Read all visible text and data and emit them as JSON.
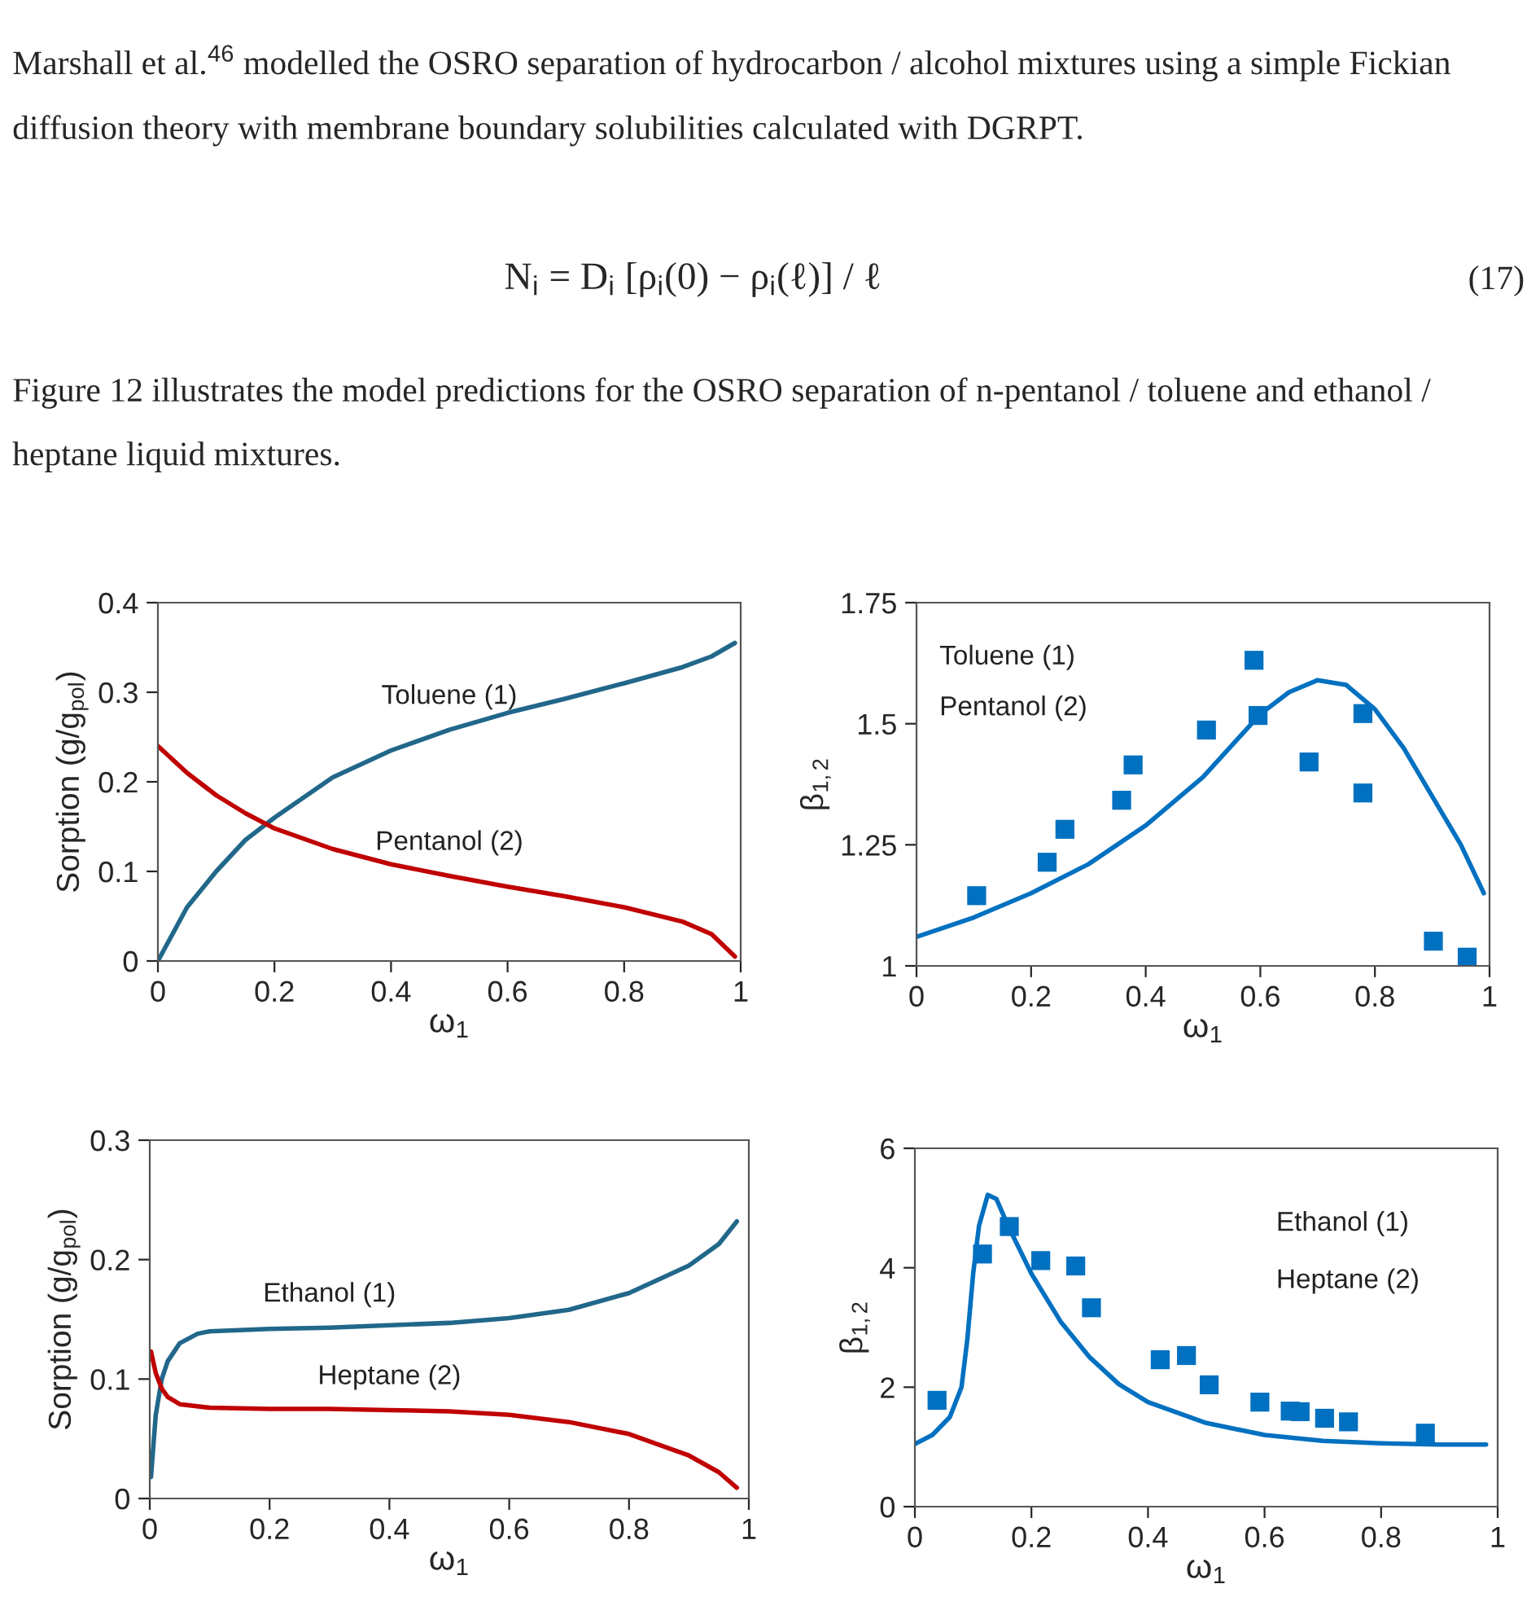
{
  "chart_data": [
    {
      "type": "line",
      "xlabel": "ω$_{1}$",
      "ylabel": "Sorption (g/g$_{pol}$)",
      "xlim": [
        0,
        1
      ],
      "ylim": [
        0,
        0.4
      ],
      "xticks": [
        0,
        0.2,
        0.4,
        0.6,
        0.8,
        1
      ],
      "yticks": [
        0,
        0.1,
        0.2,
        0.3,
        0.4
      ],
      "grid": false,
      "legend": false,
      "marker": "none",
      "line_style": "solid",
      "annotations": [
        "Marshall et al.$^{46}$ modelled the OSRO separation of hydrocarbon / alcohol mixtures using a simple Fickian diffusion theory with membrane boundary solubilities calculated with DGRPT.",
        "N$_{i}$ = D$_{i}$ [ρ$_{i}$(0) − ρ$_{i}$(ℓ)] / ℓ",
        "(17)",
        "Figure 12 illustrates the model predictions for the OSRO separation of n-pentanol / toluene and ethanol / heptane liquid mixtures."
      ],
      "series": [
        {
          "name": "Toluene (1)",
          "color": "#21678a",
          "x": [
            0,
            0.05,
            0.1,
            0.15,
            0.2,
            0.3,
            0.4,
            0.5,
            0.6,
            0.7,
            0.8,
            0.9,
            0.95,
            0.99
          ],
          "values": [
            0,
            0.06,
            0.1,
            0.135,
            0.16,
            0.205,
            0.235,
            0.258,
            0.277,
            0.293,
            0.31,
            0.328,
            0.34,
            0.355
          ]
        },
        {
          "name": "Pentanol (2)",
          "color": "#c00000",
          "x": [
            0,
            0.05,
            0.1,
            0.15,
            0.2,
            0.3,
            0.4,
            0.5,
            0.6,
            0.7,
            0.8,
            0.9,
            0.95,
            0.99
          ],
          "values": [
            0.24,
            0.21,
            0.185,
            0.165,
            0.148,
            0.125,
            0.108,
            0.095,
            0.083,
            0.072,
            0.06,
            0.044,
            0.03,
            0.005
          ]
        }
      ]
    },
    {
      "type": "line",
      "xlabel": "ω$_{1}$",
      "ylabel": "β$_{1,2}$",
      "xlim": [
        0,
        1
      ],
      "ylim": [
        1,
        1.75
      ],
      "xticks": [
        0,
        0.2,
        0.4,
        0.6,
        0.8,
        1
      ],
      "yticks": [
        1,
        1.25,
        1.5,
        1.75
      ],
      "grid": false,
      "legend": false,
      "annotations": [
        "Toluene (1)",
        "Pentanol (2)"
      ],
      "series": [
        {
          "type": "line",
          "color": "#0070c0",
          "marker": "none",
          "line_style": "solid",
          "x": [
            0,
            0.1,
            0.2,
            0.3,
            0.4,
            0.5,
            0.6,
            0.65,
            0.7,
            0.75,
            0.8,
            0.85,
            0.9,
            0.95,
            0.99
          ],
          "values": [
            1.06,
            1.1,
            1.15,
            1.21,
            1.29,
            1.39,
            1.52,
            1.565,
            1.59,
            1.58,
            1.53,
            1.45,
            1.35,
            1.25,
            1.15
          ]
        },
        {
          "type": "scatter",
          "color": "#0070c0",
          "marker": "square",
          "x": [
            0.105,
            0.228,
            0.259,
            0.358,
            0.378,
            0.506,
            0.589,
            0.596,
            0.685,
            0.779,
            0.779,
            0.902,
            0.961
          ],
          "values": [
            1.145,
            1.214,
            1.282,
            1.342,
            1.415,
            1.487,
            1.631,
            1.517,
            1.421,
            1.521,
            1.357,
            1.051,
            1.018
          ]
        }
      ]
    },
    {
      "type": "line",
      "xlabel": "ω$_{1}$",
      "ylabel": "Sorption (g/g$_{pol}$)",
      "xlim": [
        0,
        1
      ],
      "ylim": [
        0,
        0.3
      ],
      "xticks": [
        0,
        0.2,
        0.4,
        0.6,
        0.8,
        1
      ],
      "yticks": [
        0,
        0.1,
        0.2,
        0.3
      ],
      "grid": false,
      "legend": false,
      "marker": "none",
      "line_style": "solid",
      "series": [
        {
          "name": "Ethanol (1)",
          "color": "#21678a",
          "x": [
            0.002,
            0.01,
            0.02,
            0.03,
            0.05,
            0.08,
            0.1,
            0.2,
            0.3,
            0.4,
            0.5,
            0.6,
            0.7,
            0.8,
            0.9,
            0.95,
            0.98
          ],
          "values": [
            0.018,
            0.07,
            0.1,
            0.115,
            0.13,
            0.138,
            0.14,
            0.142,
            0.143,
            0.145,
            0.147,
            0.151,
            0.158,
            0.172,
            0.195,
            0.213,
            0.232
          ]
        },
        {
          "name": "Heptane (2)",
          "color": "#c00000",
          "x": [
            0.002,
            0.01,
            0.02,
            0.03,
            0.05,
            0.1,
            0.2,
            0.3,
            0.4,
            0.5,
            0.6,
            0.7,
            0.8,
            0.9,
            0.95,
            0.98
          ],
          "values": [
            0.123,
            0.105,
            0.092,
            0.085,
            0.079,
            0.076,
            0.075,
            0.075,
            0.074,
            0.073,
            0.07,
            0.064,
            0.054,
            0.036,
            0.022,
            0.009
          ]
        }
      ]
    },
    {
      "type": "line",
      "xlabel": "ω$_{1}$",
      "ylabel": "β$_{1,2}$",
      "xlim": [
        0,
        1
      ],
      "ylim": [
        0,
        6
      ],
      "xticks": [
        0,
        0.2,
        0.4,
        0.6,
        0.8,
        1
      ],
      "yticks": [
        0,
        2,
        4,
        6
      ],
      "grid": false,
      "legend": false,
      "annotations": [
        "Ethanol (1)",
        "Heptane (2)"
      ],
      "series": [
        {
          "type": "line",
          "color": "#0070c0",
          "marker": "none",
          "line_style": "solid",
          "x": [
            0,
            0.03,
            0.06,
            0.08,
            0.09,
            0.1,
            0.11,
            0.125,
            0.14,
            0.16,
            0.2,
            0.25,
            0.3,
            0.35,
            0.4,
            0.5,
            0.6,
            0.7,
            0.8,
            0.9,
            0.98
          ],
          "values": [
            1.05,
            1.2,
            1.5,
            2.0,
            2.8,
            3.9,
            4.7,
            5.22,
            5.15,
            4.7,
            3.9,
            3.1,
            2.5,
            2.05,
            1.75,
            1.4,
            1.2,
            1.1,
            1.06,
            1.04,
            1.04
          ]
        },
        {
          "type": "scatter",
          "color": "#0070c0",
          "marker": "square",
          "x": [
            0.038,
            0.116,
            0.162,
            0.216,
            0.276,
            0.303,
            0.421,
            0.466,
            0.505,
            0.592,
            0.644,
            0.661,
            0.703,
            0.744,
            0.876
          ],
          "values": [
            1.78,
            4.23,
            4.69,
            4.12,
            4.03,
            3.33,
            2.46,
            2.53,
            2.04,
            1.75,
            1.6,
            1.59,
            1.48,
            1.42,
            1.23
          ]
        }
      ]
    }
  ]
}
